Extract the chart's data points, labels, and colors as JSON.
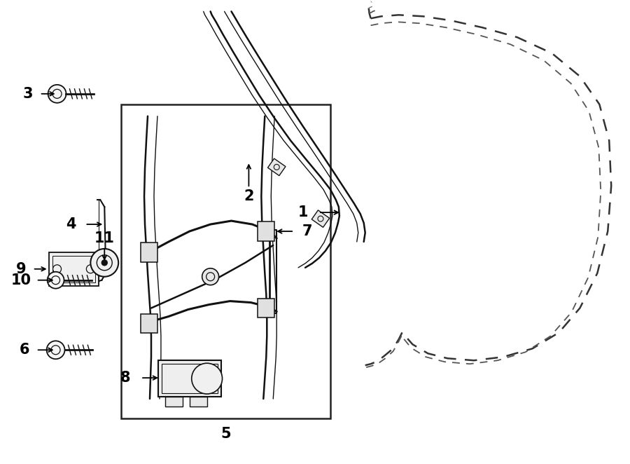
{
  "bg_color": "#ffffff",
  "line_color": "#111111",
  "fig_width": 9.0,
  "fig_height": 6.62,
  "dpi": 100
}
